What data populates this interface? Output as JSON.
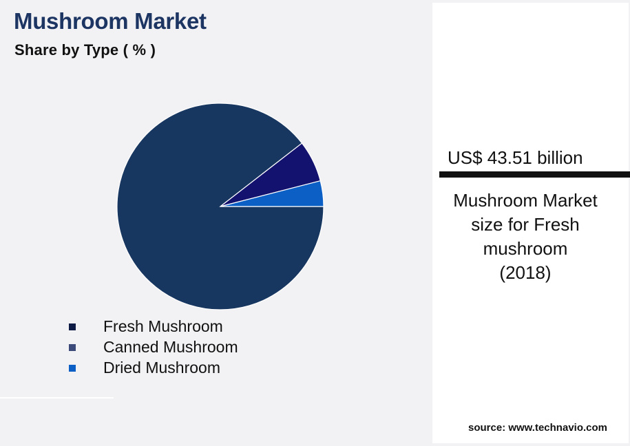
{
  "header": {
    "title": "Mushroom Market",
    "subtitle": "Share by Type ( % )"
  },
  "chart_data": {
    "type": "pie",
    "categories": [
      "Fresh Mushroom",
      "Canned Mushroom",
      "Dried Mushroom"
    ],
    "values": [
      89.5,
      6.5,
      4.0
    ],
    "colors": [
      "#173660",
      "#14126f",
      "#0c5fc4"
    ],
    "legend_colors": [
      "#0e1b45",
      "#3b4a78",
      "#0c5fc4"
    ],
    "legend_placement": "bottom-left",
    "slice_border": "#ffffff"
  },
  "kpi": {
    "value": "US$ 43.51 billion",
    "caption_lines": [
      "Mushroom Market",
      "size for Fresh",
      "mushroom",
      "(2018)"
    ]
  },
  "footer": {
    "source": "source: www.technavio.com"
  }
}
